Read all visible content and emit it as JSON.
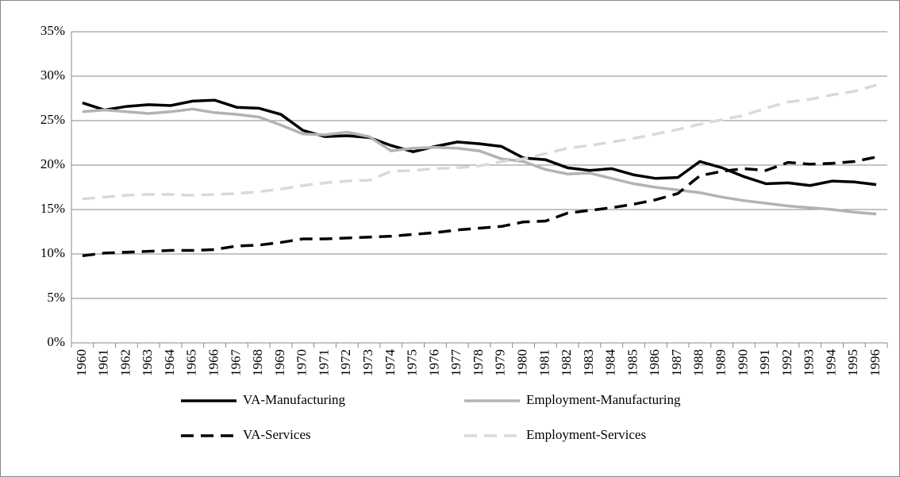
{
  "chart_data": {
    "type": "line",
    "categories": [
      "1960",
      "1961",
      "1962",
      "1963",
      "1964",
      "1965",
      "1966",
      "1967",
      "1968",
      "1969",
      "1970",
      "1971",
      "1972",
      "1973",
      "1974",
      "1975",
      "1976",
      "1977",
      "1978",
      "1979",
      "1980",
      "1981",
      "1982",
      "1983",
      "1984",
      "1985",
      "1986",
      "1987",
      "1988",
      "1989",
      "1990",
      "1991",
      "1992",
      "1993",
      "1994",
      "1995",
      "1996"
    ],
    "series": [
      {
        "name": "VA-Manufacturing",
        "color": "#000000",
        "dashed": false,
        "values": [
          27,
          26.2,
          26.6,
          26.8,
          26.7,
          27.2,
          27.3,
          26.5,
          26.4,
          25.7,
          23.9,
          23.2,
          23.3,
          23.1,
          22.2,
          21.5,
          22.1,
          22.6,
          22.4,
          22.1,
          20.8,
          20.6,
          19.7,
          19.4,
          19.6,
          18.9,
          18.5,
          18.6,
          20.4,
          19.7,
          18.7,
          17.9,
          18.0,
          17.7,
          18.2,
          18.1,
          17.8
        ]
      },
      {
        "name": "Employment-Manufacturing",
        "color": "#b3b3b3",
        "dashed": false,
        "values": [
          26,
          26.2,
          26.0,
          25.8,
          26.0,
          26.3,
          25.9,
          25.7,
          25.4,
          24.5,
          23.5,
          23.4,
          23.7,
          23.2,
          21.6,
          21.9,
          22.0,
          21.9,
          21.6,
          20.7,
          20.4,
          19.5,
          19.0,
          19.1,
          18.5,
          17.9,
          17.5,
          17.2,
          16.9,
          16.4,
          16.0,
          15.7,
          15.4,
          15.2,
          15.0,
          14.7,
          14.5
        ]
      },
      {
        "name": "VA-Services",
        "color": "#000000",
        "dashed": true,
        "values": [
          9.8,
          10.1,
          10.2,
          10.3,
          10.4,
          10.4,
          10.5,
          10.9,
          11.0,
          11.3,
          11.7,
          11.7,
          11.8,
          11.9,
          12.0,
          12.2,
          12.4,
          12.7,
          12.9,
          13.1,
          13.6,
          13.7,
          14.6,
          14.9,
          15.2,
          15.6,
          16.1,
          16.8,
          18.8,
          19.3,
          19.6,
          19.4,
          20.3,
          20.1,
          20.2,
          20.4,
          20.9
        ]
      },
      {
        "name": "Employment-Services",
        "color": "#d9d9d9",
        "dashed": true,
        "values": [
          16.2,
          16.4,
          16.6,
          16.7,
          16.7,
          16.6,
          16.7,
          16.8,
          17.0,
          17.3,
          17.7,
          18.0,
          18.2,
          18.3,
          19.3,
          19.4,
          19.6,
          19.7,
          19.9,
          20.4,
          20.7,
          21.3,
          21.9,
          22.2,
          22.6,
          23.0,
          23.5,
          24.0,
          24.6,
          25.1,
          25.6,
          26.4,
          27.1,
          27.4,
          27.9,
          28.3,
          29.0
        ]
      }
    ],
    "ylim": [
      0,
      35
    ],
    "yticks": [
      {
        "value": 0,
        "label": "0%"
      },
      {
        "value": 5,
        "label": "5%"
      },
      {
        "value": 10,
        "label": "10%"
      },
      {
        "value": 15,
        "label": "15%"
      },
      {
        "value": 20,
        "label": "20%"
      },
      {
        "value": 25,
        "label": "25%"
      },
      {
        "value": 30,
        "label": "30%"
      },
      {
        "value": 35,
        "label": "35%"
      }
    ],
    "grid": true,
    "legend": "bottom"
  }
}
